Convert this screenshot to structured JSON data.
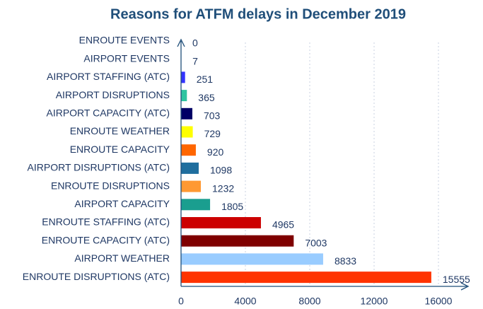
{
  "chart_data": {
    "type": "hbar",
    "title": "Reasons for ATFM delays in December 2019",
    "categories": [
      "ENROUTE EVENTS",
      "AIRPORT EVENTS",
      "AIRPORT STAFFING (ATC)",
      "AIRPORT DISRUPTIONS",
      "AIRPORT CAPACITY (ATC)",
      "ENROUTE WEATHER",
      "ENROUTE CAPACITY",
      "AIRPORT DISRUPTIONS (ATC)",
      "ENROUTE DISRUPTIONS",
      "AIRPORT CAPACITY",
      "ENROUTE STAFFING (ATC)",
      "ENROUTE CAPACITY (ATC)",
      "AIRPORT WEATHER",
      "ENROUTE DISRUPTIONS (ATC)"
    ],
    "values": [
      0,
      7,
      251,
      365,
      703,
      729,
      920,
      1098,
      1232,
      1805,
      4965,
      7003,
      8833,
      15555
    ],
    "colors": [
      "#4472c4",
      "#4472c4",
      "#3333ff",
      "#2ec4a0",
      "#000066",
      "#ffff00",
      "#ff6600",
      "#1f6e9e",
      "#ff9933",
      "#1a9e8f",
      "#cc0000",
      "#7f0000",
      "#99ccff",
      "#ff3300"
    ],
    "xlim": [
      0,
      16000
    ],
    "xticks": [
      0,
      4000,
      8000,
      12000,
      16000
    ],
    "grid": true
  }
}
